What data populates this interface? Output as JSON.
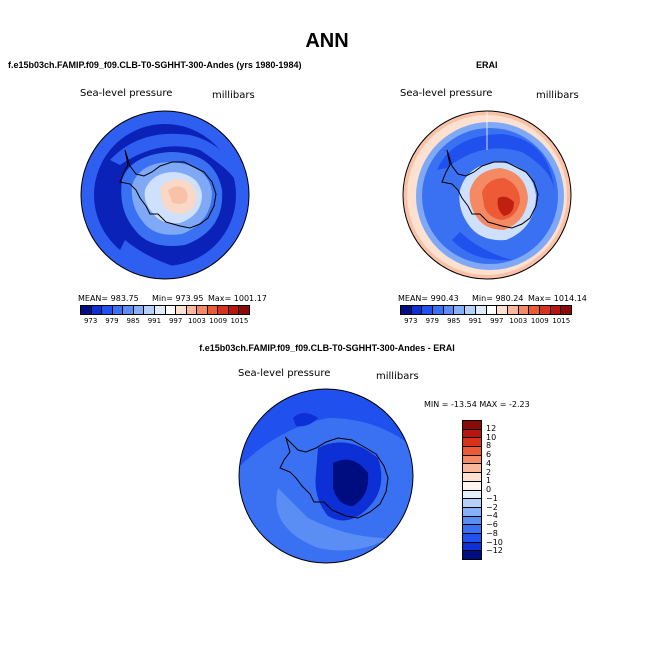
{
  "chart_data": [
    {
      "type": "heatmap",
      "title": "f.e15b03ch.FAMIP.f09_f09.CLB-T0-SGHHT-300-Andes (yrs 1980-1984)",
      "left_label": "Sea-level pressure",
      "right_label": "millibars",
      "stats": {
        "mean": "MEAN= 983.75",
        "min": "Min= 973.95",
        "max": "Max= 1001.17"
      },
      "levels": [
        "973",
        "979",
        "985",
        "991",
        "997",
        "1003",
        "1009",
        "1015"
      ],
      "colors": [
        "#000d80",
        "#0d2fd6",
        "#2050ee",
        "#3a70f2",
        "#5a8ef5",
        "#86b0f8",
        "#b5d0fb",
        "#ddebfd",
        "#ffffff",
        "#fce0d0",
        "#f9b89a",
        "#f48a64",
        "#ec5a35",
        "#d8321c",
        "#b81510",
        "#8a0a08"
      ]
    },
    {
      "type": "heatmap",
      "title": "ERAI",
      "left_label": "Sea-level pressure",
      "right_label": "millibars",
      "stats": {
        "mean": "MEAN= 990.43",
        "min": "Min= 980.24",
        "max": "Max= 1014.14"
      },
      "levels": [
        "973",
        "979",
        "985",
        "991",
        "997",
        "1003",
        "1009",
        "1015"
      ],
      "colors": [
        "#000d80",
        "#0d2fd6",
        "#2050ee",
        "#3a70f2",
        "#5a8ef5",
        "#86b0f8",
        "#b5d0fb",
        "#ddebfd",
        "#ffffff",
        "#fce0d0",
        "#f9b89a",
        "#f48a64",
        "#ec5a35",
        "#d8321c",
        "#b81510",
        "#8a0a08"
      ]
    },
    {
      "type": "heatmap",
      "title": "f.e15b03ch.FAMIP.f09_f09.CLB-T0-SGHHT-300-Andes - ERAI",
      "left_label": "Sea-level pressure",
      "right_label": "millibars",
      "minmax": "MIN = -13.54 MAX =  -2.23",
      "levels": [
        "12",
        "10",
        "8",
        "6",
        "4",
        "2",
        "1",
        "0",
        "−1",
        "−2",
        "−4",
        "−6",
        "−8",
        "−10",
        "−12"
      ],
      "colors": [
        "#8a0a08",
        "#b81510",
        "#d8321c",
        "#ec5a35",
        "#f48a64",
        "#f9b89a",
        "#fce0d0",
        "#fff5ef",
        "#e6f0fd",
        "#b5d0fb",
        "#86b0f8",
        "#5a8ef5",
        "#3a70f2",
        "#2050ee",
        "#0d2fd6",
        "#000d80"
      ]
    }
  ],
  "page": {
    "title": "ANN"
  },
  "colors": {
    "deep_blue": "#0a22b8",
    "mid_blue": "#2f5ff0",
    "light_blue": "#7fa8f6",
    "pale_blue": "#cfe0fc",
    "peach": "#f9c2a8",
    "orange_red": "#ee5a36",
    "dark_red": "#c0200f"
  }
}
